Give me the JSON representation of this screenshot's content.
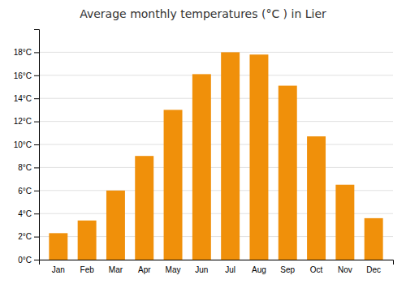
{
  "chart_data": {
    "type": "bar",
    "title": "Average monthly temperatures (°C ) in Lier",
    "categories": [
      "Jan",
      "Feb",
      "Mar",
      "Apr",
      "May",
      "Jun",
      "Jul",
      "Aug",
      "Sep",
      "Oct",
      "Nov",
      "Dec"
    ],
    "values": [
      2.3,
      3.4,
      6.0,
      9.0,
      13.0,
      16.1,
      18.0,
      17.8,
      15.1,
      10.7,
      6.5,
      3.6
    ],
    "color": "#F0900A",
    "ylim": [
      0,
      20
    ],
    "yticks": [
      {
        "value": 0,
        "label": "0°C"
      },
      {
        "value": 2,
        "label": "2°C"
      },
      {
        "value": 4,
        "label": "4°C"
      },
      {
        "value": 6,
        "label": "6°C"
      },
      {
        "value": 8,
        "label": "8°C"
      },
      {
        "value": 10,
        "label": "10°C"
      },
      {
        "value": 12,
        "label": "12°C"
      },
      {
        "value": 14,
        "label": "14°C"
      },
      {
        "value": 16,
        "label": "16°C"
      },
      {
        "value": 18,
        "label": "18°C"
      }
    ],
    "grid": true
  }
}
